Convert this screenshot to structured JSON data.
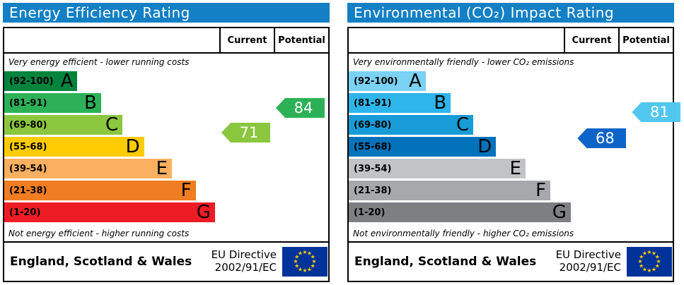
{
  "accent": {
    "header_bg": "#1380c5",
    "border": "#000000",
    "flag_bg": "#003399",
    "flag_star": "#ffcc00",
    "arrow_text": "#ffffff"
  },
  "footer": {
    "region": "England, Scotland & Wales",
    "directive_line1": "EU Directive",
    "directive_line2": "2002/91/EC"
  },
  "panels": [
    {
      "title": "Energy Efficiency Rating",
      "col_current": "Current",
      "col_potential": "Potential",
      "top_caption": "Very energy efficient - lower running costs",
      "bottom_caption": "Not energy efficient - higher running costs",
      "bands": [
        {
          "range": "(92-100)",
          "letter": "A",
          "color": "#02843d",
          "width_pct": 34
        },
        {
          "range": "(81-91)",
          "letter": "B",
          "color": "#2db157",
          "width_pct": 45
        },
        {
          "range": "(69-80)",
          "letter": "C",
          "color": "#8bc63f",
          "width_pct": 55
        },
        {
          "range": "(55-68)",
          "letter": "D",
          "color": "#fecb00",
          "width_pct": 65
        },
        {
          "range": "(39-54)",
          "letter": "E",
          "color": "#fbaf60",
          "width_pct": 78
        },
        {
          "range": "(21-38)",
          "letter": "F",
          "color": "#f07d22",
          "width_pct": 89
        },
        {
          "range": "(1-20)",
          "letter": "G",
          "color": "#ee1c25",
          "width_pct": 98
        }
      ],
      "current": {
        "value": "71",
        "color": "#8bc63f"
      },
      "potential": {
        "value": "84",
        "color": "#2db157"
      }
    },
    {
      "title": "Environmental (CO₂) Impact Rating",
      "col_current": "Current",
      "col_potential": "Potential",
      "top_caption": "Very environmentally friendly - lower CO₂ emissions",
      "bottom_caption": "Not environmentally friendly - higher CO₂ emissions",
      "bands": [
        {
          "range": "(92-100)",
          "letter": "A",
          "color": "#7ad2f5",
          "width_pct": 34
        },
        {
          "range": "(81-91)",
          "letter": "B",
          "color": "#2eb5ea",
          "width_pct": 45
        },
        {
          "range": "(69-80)",
          "letter": "C",
          "color": "#189cd8",
          "width_pct": 55
        },
        {
          "range": "(55-68)",
          "letter": "D",
          "color": "#0272bb",
          "width_pct": 65
        },
        {
          "range": "(39-54)",
          "letter": "E",
          "color": "#c2c3c5",
          "width_pct": 78
        },
        {
          "range": "(21-38)",
          "letter": "F",
          "color": "#a6a8ab",
          "width_pct": 89
        },
        {
          "range": "(1-20)",
          "letter": "G",
          "color": "#7d7f83",
          "width_pct": 98
        }
      ],
      "current": {
        "value": "68",
        "color": "#0d64c8"
      },
      "potential": {
        "value": "81",
        "color": "#51c7f0"
      }
    }
  ],
  "chart_data": [
    {
      "type": "bar",
      "title": "Energy Efficiency Rating",
      "categories": [
        "A",
        "B",
        "C",
        "D",
        "E",
        "F",
        "G"
      ],
      "band_ranges": [
        "92-100",
        "81-91",
        "69-80",
        "55-68",
        "39-54",
        "21-38",
        "1-20"
      ],
      "band_lengths_pct": [
        34,
        45,
        55,
        65,
        78,
        89,
        98
      ],
      "current": 71,
      "current_band": "C",
      "potential": 84,
      "potential_band": "B",
      "xlabel": "",
      "ylabel": "",
      "legend": [
        "Current",
        "Potential"
      ],
      "annotations": [
        "Very energy efficient - lower running costs",
        "Not energy efficient - higher running costs",
        "England, Scotland & Wales",
        "EU Directive 2002/91/EC"
      ]
    },
    {
      "type": "bar",
      "title": "Environmental (CO₂) Impact Rating",
      "categories": [
        "A",
        "B",
        "C",
        "D",
        "E",
        "F",
        "G"
      ],
      "band_ranges": [
        "92-100",
        "81-91",
        "69-80",
        "55-68",
        "39-54",
        "21-38",
        "1-20"
      ],
      "band_lengths_pct": [
        34,
        45,
        55,
        65,
        78,
        89,
        98
      ],
      "current": 68,
      "current_band": "D",
      "potential": 81,
      "potential_band": "B",
      "xlabel": "",
      "ylabel": "",
      "legend": [
        "Current",
        "Potential"
      ],
      "annotations": [
        "Very environmentally friendly - lower CO₂ emissions",
        "Not environmentally friendly - higher CO₂ emissions",
        "England, Scotland & Wales",
        "EU Directive 2002/91/EC"
      ]
    }
  ]
}
